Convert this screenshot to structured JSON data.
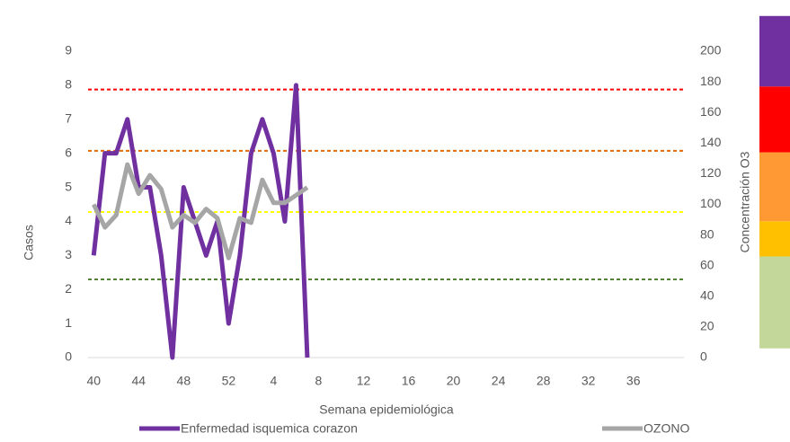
{
  "chart_data": {
    "type": "line",
    "x_label": "Semana epidemiológica",
    "y_label": "Casos",
    "y2_label": "Concentración O3",
    "categories": [
      "40",
      null,
      null,
      null,
      "44",
      null,
      null,
      null,
      "48",
      null,
      null,
      null,
      "52",
      null,
      null,
      null,
      "4",
      null,
      null,
      null,
      "8",
      null,
      null,
      null,
      "12",
      null,
      null,
      null,
      "16",
      null,
      null,
      null,
      "20",
      null,
      null,
      null,
      "24",
      null,
      null,
      null,
      "28",
      null,
      null,
      null,
      "32",
      null,
      null,
      null,
      "36",
      null,
      null,
      null,
      null
    ],
    "ylim": [
      0,
      9
    ],
    "yticks": [
      0,
      1,
      2,
      3,
      4,
      5,
      6,
      7,
      8,
      9
    ],
    "y2lim": [
      0,
      200
    ],
    "y2ticks": [
      0,
      20,
      40,
      60,
      80,
      100,
      120,
      140,
      160,
      180,
      200
    ],
    "series": [
      {
        "name": "Enfermedad isquemica corazon",
        "color": "#7030a0",
        "values": [
          3,
          6,
          6,
          7,
          5,
          5,
          3,
          0,
          5,
          4,
          3,
          4,
          1,
          3,
          6,
          7,
          6,
          4,
          8,
          0,
          null,
          null,
          null,
          null,
          null,
          null,
          null,
          null,
          null,
          null,
          null,
          null,
          null,
          null,
          null,
          null,
          null,
          null,
          null,
          null,
          null,
          null,
          null,
          null,
          null,
          null,
          null,
          null,
          null,
          null,
          null,
          null,
          null
        ]
      },
      {
        "name": "OZONO",
        "color": "#a6a6a6",
        "axis": "y2",
        "values": [
          100,
          85,
          93,
          126,
          107,
          119,
          110,
          85,
          93,
          88,
          97,
          91,
          65,
          91,
          88,
          116,
          101,
          101,
          106,
          111,
          null,
          null,
          null,
          null,
          null,
          null,
          null,
          null,
          null,
          null,
          null,
          null,
          null,
          null,
          null,
          null,
          null,
          null,
          null,
          null,
          null,
          null,
          null,
          null,
          null,
          null,
          null,
          null,
          null,
          null,
          null,
          null,
          null
        ]
      }
    ],
    "reference_lines": [
      {
        "value": 175,
        "color": "#ff0000"
      },
      {
        "value": 135,
        "color": "#e26b0a"
      },
      {
        "value": 95,
        "color": "#ffff00"
      },
      {
        "value": 51,
        "color": "#548235"
      }
    ],
    "color_bands": [
      {
        "from": 6,
        "to": 66,
        "color": "#c4d79b"
      },
      {
        "from": 66,
        "to": 89,
        "color": "#ffc000"
      },
      {
        "from": 89,
        "to": 134,
        "color": "#ff9933"
      },
      {
        "from": 134,
        "to": 177,
        "color": "#ff0000"
      },
      {
        "from": 177,
        "to": 223,
        "color": "#7030a0"
      }
    ]
  }
}
